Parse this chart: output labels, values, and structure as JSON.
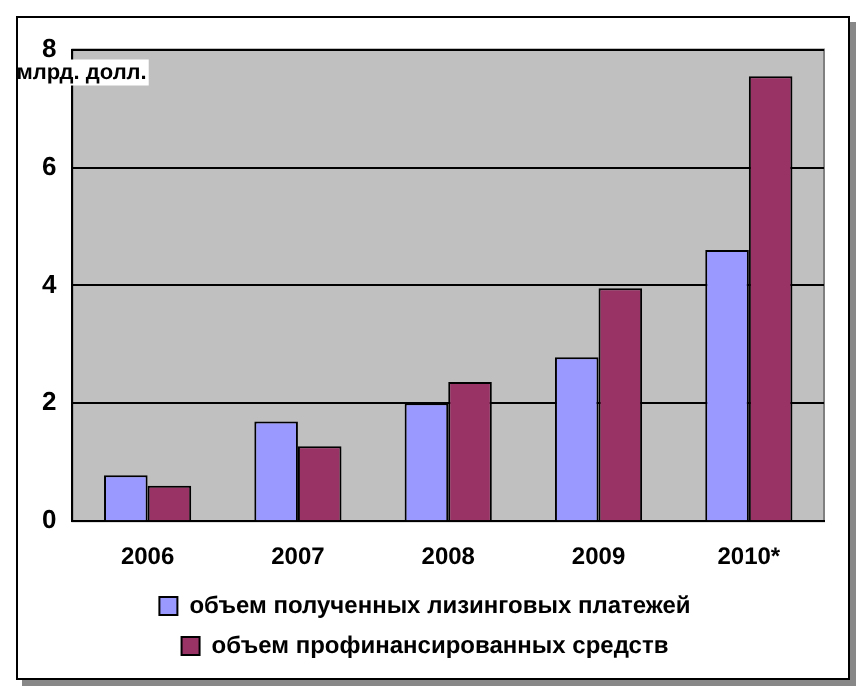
{
  "chart_data": {
    "type": "bar",
    "ylabel": "млрд. долл.",
    "categories": [
      "2006",
      "2007",
      "2008",
      "2009",
      "2010*"
    ],
    "series": [
      {
        "name": "объем полученных лизинговых платежей",
        "color": "#9999ff",
        "values": [
          0.78,
          1.69,
          2.0,
          2.78,
          4.6
        ]
      },
      {
        "name": "объем профинансированных средств",
        "color": "#993366",
        "values": [
          0.6,
          1.27,
          2.36,
          3.95,
          7.55
        ]
      }
    ],
    "ylim": [
      0,
      8
    ],
    "yticks": [
      0,
      2,
      4,
      6,
      8
    ],
    "grid": "y",
    "legend": "bottom"
  }
}
